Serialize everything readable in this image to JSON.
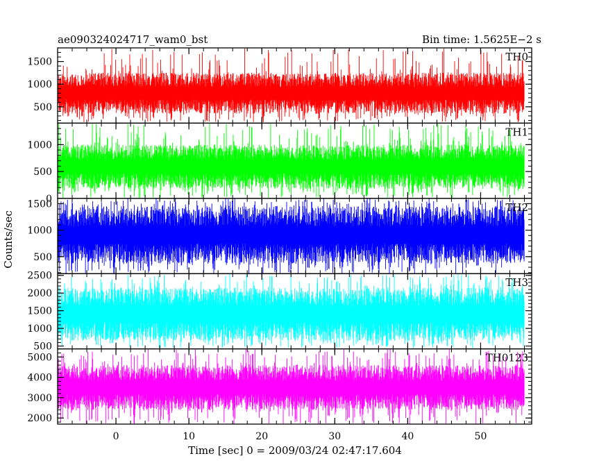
{
  "header": {
    "left_title": "ae090324024717_wam0_bst",
    "right_title": "Bin time: 1.5625E−2 s"
  },
  "chart_data": {
    "type": "line",
    "xlabel": "Time [sec] 0 = 2009/03/24 02:47:17.604",
    "ylabel": "Counts/sec",
    "xlim": [
      -8,
      57
    ],
    "x_start": -8,
    "x_end": 56,
    "x_ticks": [
      0,
      10,
      20,
      30,
      40,
      50
    ],
    "panels": [
      {
        "name": "TH0",
        "color": "#ff0000",
        "ylim": [
          140,
          1800
        ],
        "y_ticks": [
          500,
          1000,
          1500
        ],
        "band": [
          350,
          1250
        ],
        "min_spike": 160,
        "max_spike": 1800
      },
      {
        "name": "TH1",
        "color": "#00ff00",
        "ylim": [
          0,
          1400
        ],
        "y_ticks": [
          0,
          500,
          1000
        ],
        "band": [
          180,
          1000
        ],
        "min_spike": 0,
        "max_spike": 1400
      },
      {
        "name": "TH2",
        "color": "#0000ff",
        "ylim": [
          180,
          1600
        ],
        "y_ticks": [
          500,
          1000,
          1500
        ],
        "band": [
          370,
          1450
        ],
        "min_spike": 180,
        "max_spike": 1600
      },
      {
        "name": "TH3",
        "color": "#00ffff",
        "ylim": [
          420,
          2550
        ],
        "y_ticks": [
          500,
          1000,
          1500,
          2000,
          2500
        ],
        "band": [
          650,
          2150
        ],
        "min_spike": 440,
        "max_spike": 2550
      },
      {
        "name": "TH0123",
        "color": "#ff00ff",
        "ylim": [
          1700,
          5400
        ],
        "y_ticks": [
          2000,
          3000,
          4000,
          5000
        ],
        "band": [
          2400,
          4600
        ],
        "min_spike": 1700,
        "max_spike": 5400
      }
    ]
  }
}
